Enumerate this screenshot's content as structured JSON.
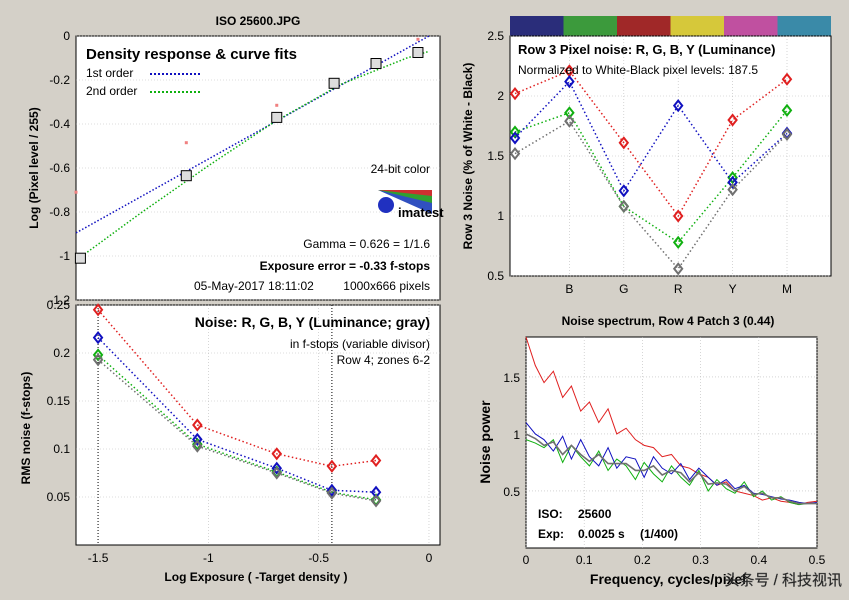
{
  "page_title": "ISO 25600.JPG",
  "colors": {
    "red": "#e02020",
    "green": "#10b010",
    "blue": "#1010c0",
    "gray": "#707070",
    "title_purple": "#800060",
    "exposure_red": "#b00000",
    "bar": [
      "#2a2d7a",
      "#3c9a3c",
      "#a02828",
      "#d6c83a",
      "#c050a0",
      "#3a8aa8"
    ]
  },
  "chart_data": [
    {
      "id": "density",
      "type": "line",
      "title": "Density response & curve fits",
      "xlabel": "Log Exposure ( -Target density )",
      "ylabel": "Log (Pixel level / 255)",
      "xlim": [
        -1.6,
        0.05
      ],
      "ylim": [
        -1.2,
        0
      ],
      "yticks": [
        0,
        -0.2,
        -0.4,
        -0.6,
        -0.8,
        -1,
        -1.2
      ],
      "yticklabels": [
        "0",
        "-0.2",
        "-0.4",
        "-0.6",
        "-0.8",
        "-1",
        "-1.2"
      ],
      "legend": [
        "1st order",
        "2nd order"
      ],
      "series": [
        {
          "name": "1st order",
          "color": "#1010c0",
          "x": [
            -1.6,
            0.0
          ],
          "y": [
            -0.895,
            0.0
          ]
        },
        {
          "name": "2nd order",
          "color": "#10b010",
          "x": [
            -1.6,
            -1.3,
            -1.0,
            -0.7,
            -0.4,
            -0.1,
            0.0
          ],
          "y": [
            -1.02,
            -0.8,
            -0.59,
            -0.39,
            -0.22,
            -0.1,
            -0.07
          ]
        }
      ],
      "squares": {
        "x": [
          -1.58,
          -1.1,
          -0.69,
          -0.43,
          -0.24,
          -0.05
        ],
        "y": [
          -1.01,
          -0.635,
          -0.37,
          -0.215,
          -0.125,
          -0.075
        ]
      },
      "pink_points": {
        "x": [
          -1.6,
          -1.1,
          -0.69,
          -0.05
        ],
        "y": [
          -0.71,
          -0.485,
          -0.315,
          -0.015
        ]
      },
      "annotations": {
        "bitdepth": "24-bit color",
        "logo": "imatest",
        "gamma": "Gamma = 0.626 = 1/1.6",
        "exposure_error": "Exposure error = -0.33 f-stops",
        "date": "05-May-2017 18:11:02",
        "size": "1000x666 pixels"
      }
    },
    {
      "id": "pixel_noise",
      "type": "line",
      "title": "Row 3 Pixel noise: R, G, B, Y (Luminance)",
      "subtitle": "Normalized to White-Black pixel levels: 187.5",
      "ylabel": "Row 3 Noise (% of White - Black)",
      "categories": [
        "",
        "B",
        "G",
        "R",
        "Y",
        "M"
      ],
      "ylim": [
        0.5,
        2.5
      ],
      "yticks": [
        0.5,
        1,
        1.5,
        2,
        2.5
      ],
      "yticklabels": [
        "0.5",
        "1",
        "1.5",
        "2",
        "2.5"
      ],
      "series": [
        {
          "name": "R",
          "color": "#e02020",
          "values": [
            2.02,
            2.21,
            1.61,
            1.0,
            1.8,
            2.14
          ]
        },
        {
          "name": "G",
          "color": "#10b010",
          "values": [
            1.7,
            1.86,
            1.08,
            0.78,
            1.32,
            1.88
          ]
        },
        {
          "name": "B",
          "color": "#1010c0",
          "values": [
            1.65,
            2.12,
            1.21,
            1.92,
            1.28,
            1.69
          ]
        },
        {
          "name": "Y",
          "color": "#707070",
          "values": [
            1.52,
            1.79,
            1.08,
            0.56,
            1.22,
            1.68
          ]
        }
      ]
    },
    {
      "id": "rms_noise",
      "type": "line",
      "title": "Noise: R, G, B, Y (Luminance; gray)",
      "subtitle1": "in f-stops (variable divisor)",
      "subtitle2": "Row 4; zones 6-2",
      "xlabel": "Log Exposure ( -Target density )",
      "ylabel": "RMS noise (f-stops)",
      "xlim": [
        -1.6,
        0.05
      ],
      "ylim": [
        0,
        0.25
      ],
      "xticks": [
        -1.5,
        -1,
        -0.5,
        0
      ],
      "xticklabels": [
        "-1.5",
        "-1",
        "-0.5",
        "0"
      ],
      "yticks": [
        0.05,
        0.1,
        0.15,
        0.2,
        0.25
      ],
      "yticklabels": [
        "0.05",
        "0.1",
        "0.15",
        "0.2",
        "0.25"
      ],
      "x": [
        -1.5,
        -1.05,
        -0.69,
        -0.44,
        -0.24
      ],
      "series": [
        {
          "name": "R",
          "color": "#e02020",
          "values": [
            0.245,
            0.125,
            0.095,
            0.082,
            0.088
          ]
        },
        {
          "name": "G",
          "color": "#10b010",
          "values": [
            0.198,
            0.105,
            0.076,
            0.055,
            0.047
          ]
        },
        {
          "name": "B",
          "color": "#1010c0",
          "values": [
            0.216,
            0.11,
            0.08,
            0.057,
            0.055
          ]
        },
        {
          "name": "Y",
          "color": "#707070",
          "values": [
            0.193,
            0.103,
            0.075,
            0.054,
            0.046
          ]
        }
      ],
      "vlines": [
        -1.5,
        -0.44
      ]
    },
    {
      "id": "spectrum",
      "type": "line",
      "title": "Noise spectrum, Row 4 Patch 3 (0.44)",
      "xlabel": "Frequency, cycles/pixel",
      "ylabel": "Noise power",
      "xlim": [
        0,
        0.5
      ],
      "ylim": [
        0,
        1.85
      ],
      "xticks": [
        0,
        0.1,
        0.2,
        0.3,
        0.4,
        0.5
      ],
      "xticklabels": [
        "0",
        "0.1",
        "0.2",
        "0.3",
        "0.4",
        "0.5"
      ],
      "yticks": [
        0.5,
        1,
        1.5
      ],
      "yticklabels": [
        "0.5",
        "1",
        "1.5"
      ],
      "x": [
        0,
        0.016,
        0.031,
        0.047,
        0.063,
        0.078,
        0.094,
        0.109,
        0.125,
        0.141,
        0.156,
        0.172,
        0.188,
        0.203,
        0.219,
        0.234,
        0.25,
        0.266,
        0.281,
        0.297,
        0.313,
        0.328,
        0.344,
        0.359,
        0.375,
        0.391,
        0.406,
        0.422,
        0.438,
        0.453,
        0.469,
        0.484,
        0.5
      ],
      "series": [
        {
          "name": "R",
          "color": "#e02020",
          "values": [
            1.85,
            1.6,
            1.45,
            1.55,
            1.32,
            1.42,
            1.2,
            1.28,
            1.1,
            1.22,
            1.0,
            1.05,
            0.95,
            0.9,
            0.88,
            0.8,
            0.82,
            0.72,
            0.7,
            0.65,
            0.62,
            0.55,
            0.58,
            0.5,
            0.48,
            0.46,
            0.42,
            0.44,
            0.41,
            0.4,
            0.38,
            0.4,
            0.41
          ]
        },
        {
          "name": "G",
          "color": "#10b010",
          "values": [
            0.95,
            0.92,
            0.88,
            0.95,
            0.75,
            0.9,
            0.8,
            0.72,
            0.85,
            0.68,
            0.78,
            0.72,
            0.6,
            0.75,
            0.65,
            0.58,
            0.72,
            0.62,
            0.55,
            0.68,
            0.5,
            0.6,
            0.52,
            0.48,
            0.58,
            0.45,
            0.5,
            0.42,
            0.45,
            0.4,
            0.38,
            0.39,
            0.39
          ]
        },
        {
          "name": "B",
          "color": "#1010c0",
          "values": [
            1.1,
            1.0,
            0.95,
            0.85,
            0.98,
            0.78,
            0.95,
            0.8,
            0.72,
            0.88,
            0.7,
            0.8,
            0.78,
            0.62,
            0.8,
            0.7,
            0.65,
            0.74,
            0.6,
            0.7,
            0.62,
            0.55,
            0.6,
            0.52,
            0.55,
            0.48,
            0.47,
            0.45,
            0.43,
            0.42,
            0.4,
            0.39,
            0.4
          ]
        },
        {
          "name": "Y",
          "color": "#707070",
          "values": [
            1.0,
            0.96,
            0.9,
            0.93,
            0.82,
            0.9,
            0.82,
            0.76,
            0.82,
            0.74,
            0.74,
            0.74,
            0.68,
            0.68,
            0.72,
            0.64,
            0.68,
            0.66,
            0.58,
            0.66,
            0.56,
            0.57,
            0.56,
            0.5,
            0.54,
            0.47,
            0.48,
            0.44,
            0.44,
            0.41,
            0.39,
            0.39,
            0.39
          ]
        }
      ],
      "annotations": {
        "iso_label": "ISO:",
        "iso_value": "25600",
        "exp_label": "Exp:",
        "exp_value": "0.0025 s",
        "exp_frac": "(1/400)"
      }
    }
  ],
  "watermark": "头条号 / 科技视讯"
}
